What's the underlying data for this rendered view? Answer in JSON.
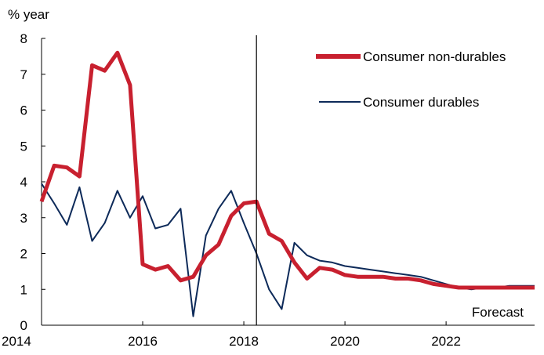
{
  "chart_data": {
    "type": "line",
    "y_unit_label": "% year",
    "ylim": [
      0,
      8
    ],
    "y_ticks": [
      "0",
      "1",
      "2",
      "3",
      "4",
      "5",
      "6",
      "7",
      "8"
    ],
    "xlim": [
      2014,
      2023.75
    ],
    "x_ticks": [
      "2014",
      "2016",
      "2018",
      "2020",
      "2022"
    ],
    "grid": false,
    "legend_position": "top-right",
    "forecast_marker": {
      "x": 2018.25,
      "label": "Forecast"
    },
    "series": [
      {
        "name": "Consumer non-durables",
        "color": "#c8202f",
        "x": [
          2014,
          2014.25,
          2014.5,
          2014.75,
          2015,
          2015.25,
          2015.5,
          2015.75,
          2016,
          2016.25,
          2016.5,
          2016.75,
          2017,
          2017.25,
          2017.5,
          2017.75,
          2018,
          2018.25,
          2018.5,
          2018.75,
          2019,
          2019.25,
          2019.5,
          2019.75,
          2020,
          2020.25,
          2020.5,
          2020.75,
          2021,
          2021.25,
          2021.5,
          2021.75,
          2022,
          2022.25,
          2022.5,
          2022.75,
          2023,
          2023.25,
          2023.5,
          2023.75
        ],
        "values": [
          3.45,
          4.45,
          4.4,
          4.15,
          7.25,
          7.1,
          7.6,
          6.7,
          1.7,
          1.55,
          1.65,
          1.25,
          1.35,
          1.95,
          2.25,
          3.05,
          3.4,
          3.45,
          2.55,
          2.35,
          1.75,
          1.3,
          1.6,
          1.55,
          1.4,
          1.35,
          1.35,
          1.35,
          1.3,
          1.3,
          1.25,
          1.15,
          1.1,
          1.05,
          1.05,
          1.05,
          1.05,
          1.05,
          1.05,
          1.05
        ]
      },
      {
        "name": "Consumer durables",
        "color": "#0d2a59",
        "x": [
          2014,
          2014.25,
          2014.5,
          2014.75,
          2015,
          2015.25,
          2015.5,
          2015.75,
          2016,
          2016.25,
          2016.5,
          2016.75,
          2017,
          2017.25,
          2017.5,
          2017.75,
          2018,
          2018.25,
          2018.5,
          2018.75,
          2019,
          2019.25,
          2019.5,
          2019.75,
          2020,
          2020.25,
          2020.5,
          2020.75,
          2021,
          2021.25,
          2021.5,
          2021.75,
          2022,
          2022.25,
          2022.5,
          2022.75,
          2023,
          2023.25,
          2023.5,
          2023.75
        ],
        "values": [
          3.95,
          3.4,
          2.8,
          3.85,
          2.35,
          2.85,
          3.75,
          3.0,
          3.6,
          2.7,
          2.8,
          3.25,
          0.25,
          2.5,
          3.25,
          3.75,
          2.85,
          2.0,
          1.0,
          0.45,
          2.3,
          1.95,
          1.8,
          1.75,
          1.65,
          1.6,
          1.55,
          1.5,
          1.45,
          1.4,
          1.35,
          1.25,
          1.15,
          1.05,
          1.0,
          1.05,
          1.05,
          1.1,
          1.1,
          1.1
        ]
      }
    ]
  }
}
